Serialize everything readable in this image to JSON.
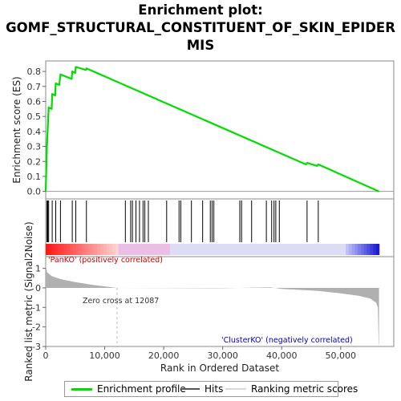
{
  "title_lines": [
    "Enrichment plot:",
    "GOMF_STRUCTURAL_CONSTITUENT_OF_SKIN_EPIDER",
    "MIS"
  ],
  "colors": {
    "enrichment_line": "#00dd00",
    "hits": "#000000",
    "metric_fill": "#b0b0b0",
    "positive_label": "#cc0000",
    "negative_label": "#0000cc",
    "zero_cross_line": "#bbbbbb"
  },
  "legend": {
    "enrichment": "Enrichment profile",
    "hits": "Hits",
    "ranking": "Ranking metric scores"
  },
  "annotations": {
    "positive": "'PanKO' (positively correlated)",
    "negative": "'ClusterKO' (negatively correlated)",
    "zero_cross": "Zero cross at 12087"
  },
  "chart_data": {
    "type": "line",
    "xlabel": "Rank in Ordered Dataset",
    "ylabel_top": "Enrichment score (ES)",
    "ylabel_bottom": "Ranked list metric (Signal2Noise)",
    "xlim": [
      0,
      59000
    ],
    "ylim_top": [
      -0.05,
      0.87
    ],
    "ylim_bottom": [
      -3,
      1.6
    ],
    "x_ticks": [
      0,
      10000,
      20000,
      30000,
      40000,
      50000
    ],
    "x_tick_labels": [
      "0",
      "10,000",
      "20,000",
      "30,000",
      "40,000",
      "50,000"
    ],
    "y_ticks_top": [
      0.0,
      0.1,
      0.2,
      0.3,
      0.4,
      0.5,
      0.6,
      0.7,
      0.8
    ],
    "y_tick_labels_top": [
      "0.0",
      "0.1",
      "0.2",
      "0.3",
      "0.4",
      "0.5",
      "0.6",
      "0.7",
      "0.8"
    ],
    "y_ticks_bottom": [
      1,
      0,
      -1,
      -2,
      -3
    ],
    "y_tick_labels_bottom": [
      "1",
      "0",
      "-1",
      "-2",
      "-3"
    ],
    "zero_cross": 12087,
    "total_rank": 56500,
    "es_profile": [
      [
        0,
        0.0
      ],
      [
        200,
        0.3
      ],
      [
        350,
        0.43
      ],
      [
        500,
        0.56
      ],
      [
        1000,
        0.55
      ],
      [
        1100,
        0.65
      ],
      [
        1600,
        0.64
      ],
      [
        1700,
        0.72
      ],
      [
        2300,
        0.71
      ],
      [
        2500,
        0.78
      ],
      [
        4400,
        0.75
      ],
      [
        4500,
        0.8
      ],
      [
        5000,
        0.79
      ],
      [
        5100,
        0.83
      ],
      [
        6800,
        0.81
      ],
      [
        6900,
        0.82
      ],
      [
        44100,
        0.18
      ],
      [
        44300,
        0.19
      ],
      [
        46000,
        0.17
      ],
      [
        46200,
        0.18
      ],
      [
        56500,
        0.0
      ]
    ],
    "hits": [
      200,
      350,
      500,
      1100,
      1700,
      2500,
      4500,
      5100,
      6900,
      13500,
      14400,
      14700,
      15300,
      15900,
      16500,
      16800,
      17400,
      20500,
      22600,
      22900,
      24700,
      26600,
      27900,
      28200,
      28500,
      32900,
      33200,
      34900,
      37400,
      38300,
      38700,
      39000,
      39600,
      44300,
      46200
    ],
    "metric_profile": [
      [
        0,
        1.5
      ],
      [
        60,
        1.05
      ],
      [
        250,
        0.8
      ],
      [
        1000,
        0.6
      ],
      [
        2500,
        0.45
      ],
      [
        5000,
        0.3
      ],
      [
        8000,
        0.15
      ],
      [
        11000,
        0.04
      ],
      [
        12087,
        0.0
      ],
      [
        30000,
        -0.02
      ],
      [
        38000,
        0.03
      ],
      [
        40000,
        -0.05
      ],
      [
        46000,
        -0.15
      ],
      [
        50000,
        -0.28
      ],
      [
        53000,
        -0.4
      ],
      [
        55000,
        -0.55
      ],
      [
        56000,
        -0.75
      ],
      [
        56300,
        -1.0
      ],
      [
        56450,
        -2.9
      ],
      [
        56500,
        -2.9
      ]
    ]
  }
}
